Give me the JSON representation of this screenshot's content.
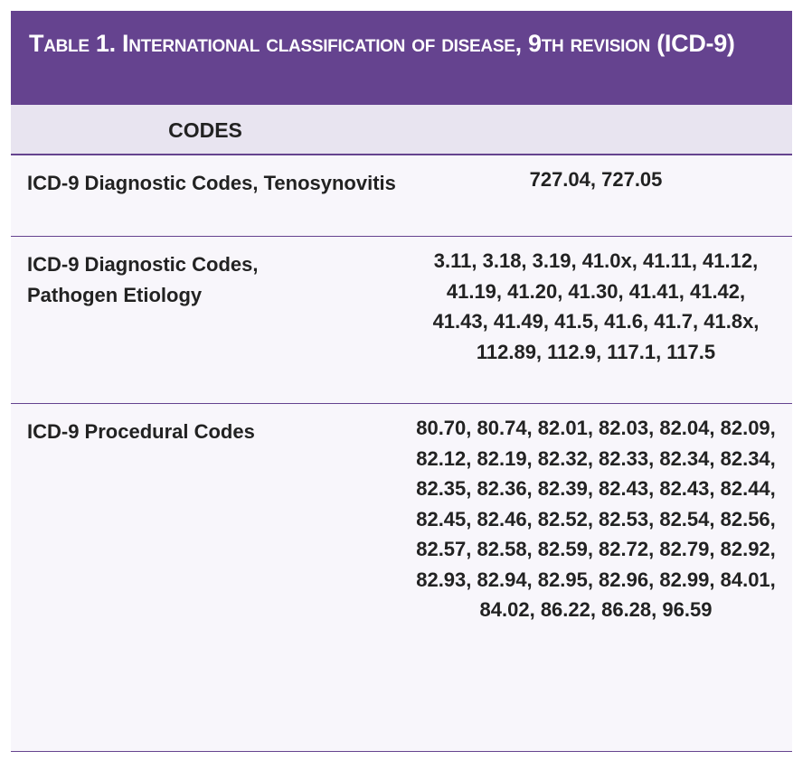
{
  "title": "Table 1. International classification of disease, 9th revision (ICD-9)",
  "header": {
    "codes": "CODES"
  },
  "rows": [
    {
      "label": "ICD-9 Diagnostic Codes, Tenosynovitis",
      "codes": "727.04, 727.05"
    },
    {
      "label": "ICD-9 Diagnostic Codes, Pathogen Etiology",
      "codes": "3.11, 3.18, 3.19, 41.0x, 41.11, 41.12, 41.19, 41.20, 41.30, 41.41, 41.42, 41.43, 41.49, 41.5, 41.6, 41.7, 41.8x, 112.89, 112.9, 117.1, 117.5"
    },
    {
      "label": "ICD-9 Procedural Codes",
      "codes": "80.70, 80.74, 82.01, 82.03, 82.04, 82.09, 82.12, 82.19, 82.32, 82.33, 82.34, 82.34, 82.35, 82.36, 82.39, 82.43, 82.43, 82.44, 82.45, 82.46, 82.52, 82.53, 82.54, 82.56, 82.57, 82.58, 82.59, 82.72, 82.79, 82.92, 82.93, 82.94, 82.95, 82.96, 82.99, 84.01, 84.02, 86.22, 86.28, 96.59"
    }
  ],
  "colors": {
    "title_bg": "#65438f",
    "header_bg": "#e8e4f0",
    "body_bg": "#f8f6fb"
  }
}
